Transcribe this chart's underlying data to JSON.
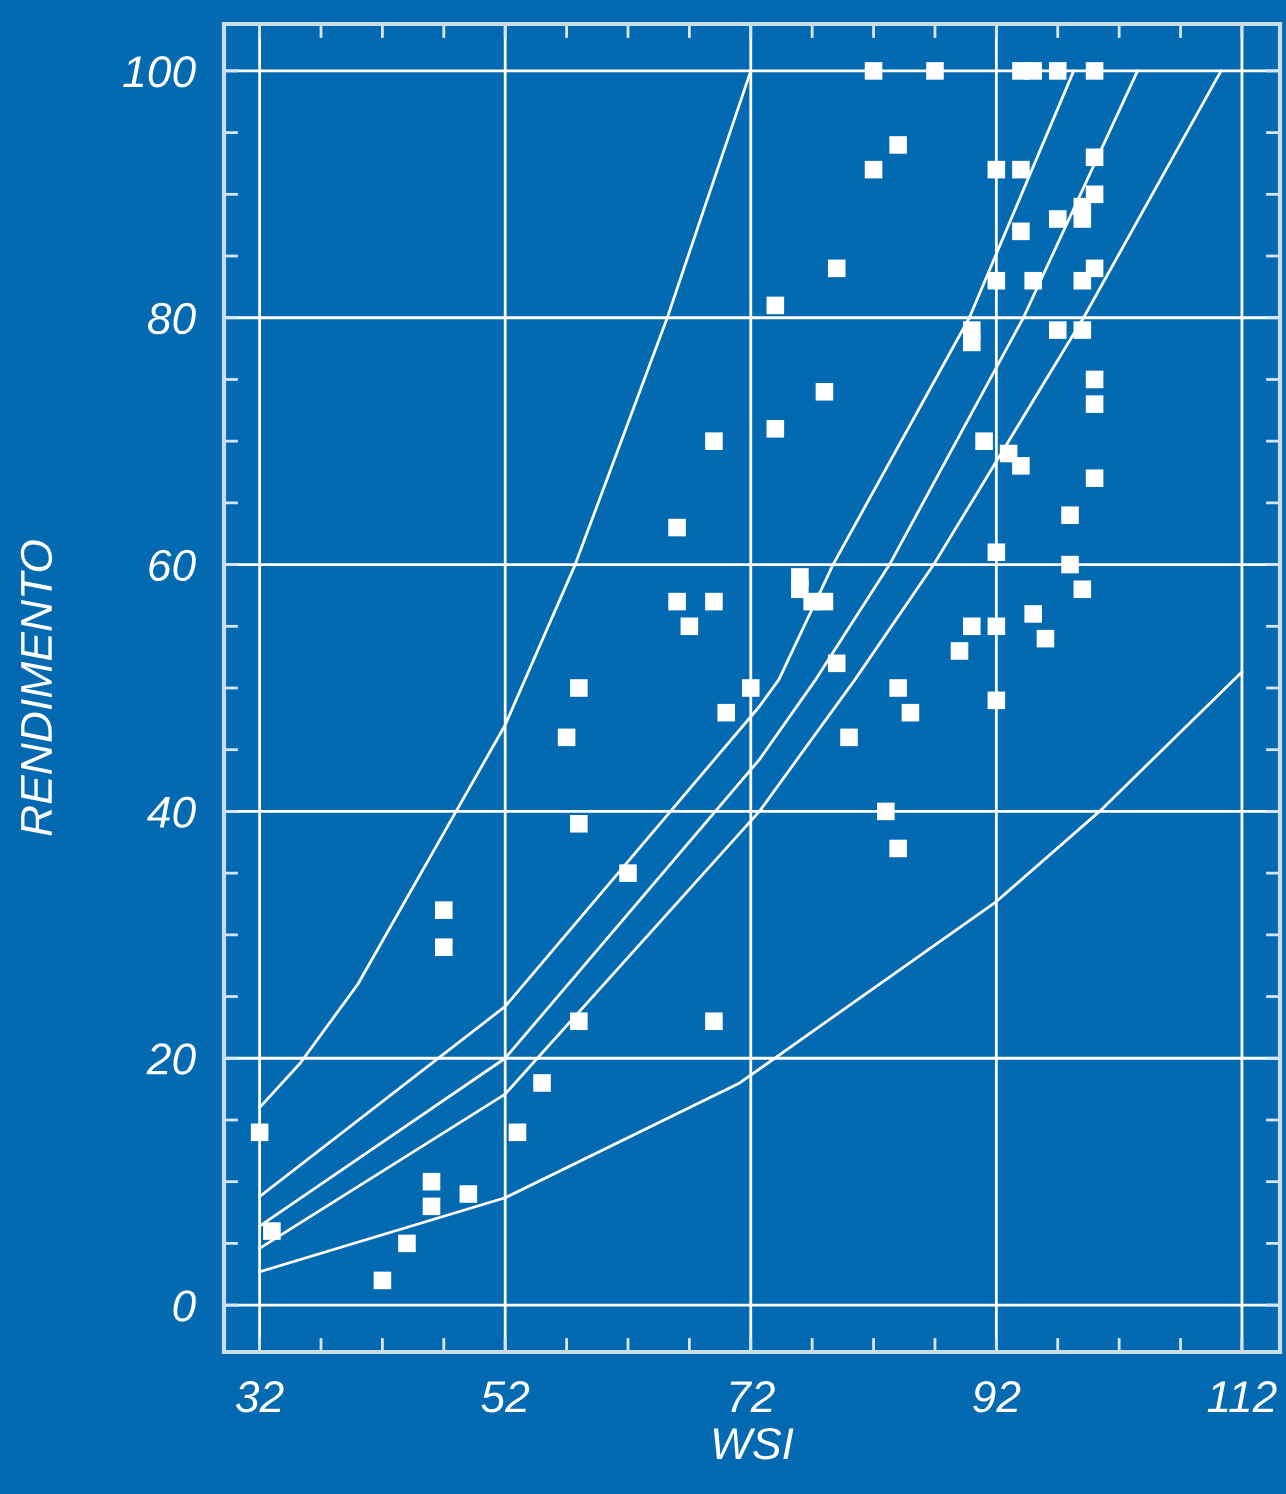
{
  "chart_data": {
    "type": "scatter",
    "xlabel": "WSI",
    "ylabel": "RENDIMENTO",
    "xlim": [
      29.1,
      115.1
    ],
    "ylim": [
      -3.8,
      103.8
    ],
    "xticks": [
      32,
      {
        "value": 37,
        "label": null
      },
      {
        "value": 42,
        "label": null
      },
      {
        "value": 47,
        "label": null
      },
      52,
      {
        "value": 57,
        "label": null
      },
      {
        "value": 62,
        "label": null
      },
      {
        "value": 67,
        "label": null
      },
      72,
      {
        "value": 77,
        "label": null
      },
      {
        "value": 82,
        "label": null
      },
      {
        "value": 87,
        "label": null
      },
      92,
      {
        "value": 97,
        "label": null
      },
      {
        "value": 102,
        "label": null
      },
      {
        "value": 107,
        "label": null
      },
      112
    ],
    "yticks": [
      0,
      {
        "value": 5,
        "label": null
      },
      {
        "value": 10,
        "label": null
      },
      {
        "value": 15,
        "label": null
      },
      20,
      {
        "value": 25,
        "label": null
      },
      {
        "value": 30,
        "label": null
      },
      {
        "value": 35,
        "label": null
      },
      40,
      {
        "value": 45,
        "label": null
      },
      {
        "value": 50,
        "label": null
      },
      {
        "value": 55,
        "label": null
      },
      60,
      {
        "value": 65,
        "label": null
      },
      {
        "value": 70,
        "label": null
      },
      {
        "value": 75,
        "label": null
      },
      80,
      {
        "value": 85,
        "label": null
      },
      {
        "value": 90,
        "label": null
      },
      {
        "value": 95,
        "label": null
      },
      100
    ],
    "grid": true,
    "series": [
      {
        "marker": "square",
        "color": "#ffffff",
        "x": [
          82,
          87,
          94,
          95,
          97,
          100,
          84,
          82,
          92,
          94,
          100,
          100,
          99,
          99,
          97,
          94,
          79,
          92,
          95,
          99,
          100,
          74,
          90,
          90,
          97,
          99,
          100,
          100,
          78,
          74,
          69,
          91,
          93,
          94,
          100,
          98,
          66,
          92,
          98,
          99,
          76,
          76,
          77,
          78,
          66,
          69,
          95,
          67,
          90,
          92,
          96,
          89,
          79,
          72,
          58,
          84,
          92,
          70,
          85,
          57,
          80,
          83,
          58,
          84,
          62,
          47,
          47,
          58,
          69,
          55,
          53,
          32,
          33,
          46,
          46,
          49,
          44,
          42
        ],
        "values": [
          100,
          100,
          100,
          100,
          100,
          100,
          94,
          92,
          92,
          92,
          93,
          90,
          89,
          88,
          88,
          87,
          84,
          83,
          83,
          83,
          84,
          81,
          79,
          78,
          79,
          79,
          75,
          73,
          74,
          71,
          70,
          70,
          69,
          68,
          67,
          64,
          63,
          61,
          60,
          58,
          59,
          58,
          57,
          57,
          57,
          57,
          56,
          55,
          55,
          55,
          54,
          53,
          52,
          50,
          50,
          50,
          49,
          48,
          48,
          46,
          46,
          40,
          39,
          37,
          35,
          32,
          29,
          23,
          23,
          18,
          14,
          14,
          6,
          10,
          8,
          9,
          5,
          2
        ]
      },
      {
        "type": "line",
        "color": "#ffffff",
        "x": [
          32,
          35.3,
          40,
          48,
          52,
          57.7,
          65.2,
          72
        ],
        "values": [
          16,
          19.6,
          26,
          40,
          47,
          60,
          80,
          100
        ]
      },
      {
        "type": "line",
        "color": "#ffffff",
        "x": [
          32,
          52,
          72.7,
          74.3,
          78.7,
          89.8,
          98.3
        ],
        "values": [
          8.8,
          24.2,
          48.5,
          50.7,
          60,
          80,
          100
        ]
      },
      {
        "type": "line",
        "color": "#ffffff",
        "x": [
          32,
          52,
          72.7,
          77.3,
          83.3,
          94.2,
          103.5
        ],
        "values": [
          6.4,
          20,
          44.2,
          50.7,
          60,
          80,
          100
        ]
      },
      {
        "type": "line",
        "color": "#ffffff",
        "x": [
          32,
          52,
          72.7,
          80.5,
          86.9,
          99.1,
          110.3
        ],
        "values": [
          4.6,
          17.1,
          40,
          50.7,
          60,
          80,
          100
        ]
      },
      {
        "type": "line",
        "color": "#ffffff",
        "x": [
          32,
          52,
          71.1,
          92,
          100.4,
          112
        ],
        "values": [
          2.7,
          8.7,
          18,
          32.7,
          40,
          51.3
        ]
      }
    ]
  }
}
